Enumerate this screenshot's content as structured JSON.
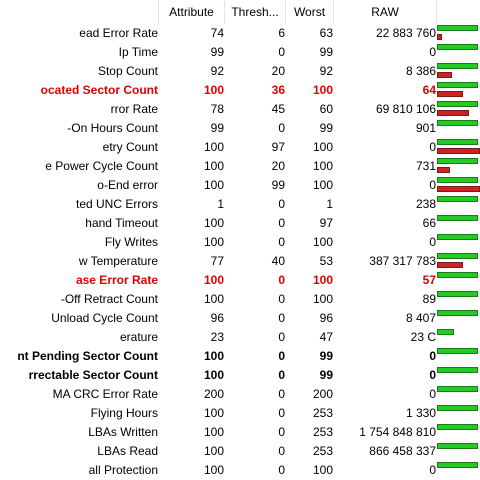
{
  "columns": {
    "attribute": "Attribute",
    "threshold": "Thresh...",
    "worst": "Worst",
    "raw": "RAW"
  },
  "colors": {
    "critical_text": "#e00000",
    "health_bar": "#22cc22",
    "raw_bar": "#cc2222"
  },
  "rows": [
    {
      "name": "ead Error Rate",
      "attribute": "74",
      "threshold": "6",
      "worst": "63",
      "raw": "22 883 760",
      "style": "normal",
      "health": 0.95,
      "raw_level": 0.12
    },
    {
      "name": "Ip Time",
      "attribute": "99",
      "threshold": "0",
      "worst": "99",
      "raw": "0",
      "style": "normal",
      "health": 0.95,
      "raw_level": 0
    },
    {
      "name": "Stop Count",
      "attribute": "92",
      "threshold": "20",
      "worst": "92",
      "raw": "8 386",
      "style": "normal",
      "health": 0.95,
      "raw_level": 0.35
    },
    {
      "name": "ocated Sector Count",
      "attribute": "100",
      "threshold": "36",
      "worst": "100",
      "raw": "64",
      "style": "red",
      "health": 0.95,
      "raw_level": 0.6
    },
    {
      "name": "rror Rate",
      "attribute": "78",
      "threshold": "45",
      "worst": "60",
      "raw": "69 810 106",
      "style": "normal",
      "health": 0.95,
      "raw_level": 0.75
    },
    {
      "name": "-On Hours Count",
      "attribute": "99",
      "threshold": "0",
      "worst": "99",
      "raw": "901",
      "style": "normal",
      "health": 0.95,
      "raw_level": 0
    },
    {
      "name": "etry Count",
      "attribute": "100",
      "threshold": "97",
      "worst": "100",
      "raw": "0",
      "style": "normal",
      "health": 0.95,
      "raw_level": 1.0
    },
    {
      "name": "e Power Cycle Count",
      "attribute": "100",
      "threshold": "20",
      "worst": "100",
      "raw": "731",
      "style": "normal",
      "health": 0.95,
      "raw_level": 0.3
    },
    {
      "name": "o-End error",
      "attribute": "100",
      "threshold": "99",
      "worst": "100",
      "raw": "0",
      "style": "normal",
      "health": 0.95,
      "raw_level": 1.0
    },
    {
      "name": "ted UNC Errors",
      "attribute": "1",
      "threshold": "0",
      "worst": "1",
      "raw": "238",
      "style": "normal",
      "health": 0.95,
      "raw_level": 0
    },
    {
      "name": "hand Timeout",
      "attribute": "100",
      "threshold": "0",
      "worst": "97",
      "raw": "66",
      "style": "normal",
      "health": 0.95,
      "raw_level": 0
    },
    {
      "name": "Fly Writes",
      "attribute": "100",
      "threshold": "0",
      "worst": "100",
      "raw": "0",
      "style": "normal",
      "health": 0.95,
      "raw_level": 0
    },
    {
      "name": "w Temperature",
      "attribute": "77",
      "threshold": "40",
      "worst": "53",
      "raw": "387 317 783",
      "style": "normal",
      "health": 0.95,
      "raw_level": 0.6
    },
    {
      "name": "ase Error Rate",
      "attribute": "100",
      "threshold": "0",
      "worst": "100",
      "raw": "57",
      "style": "red",
      "health": 0.95,
      "raw_level": 0
    },
    {
      "name": "-Off Retract Count",
      "attribute": "100",
      "threshold": "0",
      "worst": "100",
      "raw": "89",
      "style": "normal",
      "health": 0.95,
      "raw_level": 0
    },
    {
      "name": "Unload Cycle Count",
      "attribute": "96",
      "threshold": "0",
      "worst": "96",
      "raw": "8 407",
      "style": "normal",
      "health": 0.95,
      "raw_level": 0
    },
    {
      "name": "erature",
      "attribute": "23",
      "threshold": "0",
      "worst": "47",
      "raw": "23 C",
      "style": "normal",
      "health": 0.4,
      "raw_level": 0
    },
    {
      "name": "nt Pending Sector Count",
      "attribute": "100",
      "threshold": "0",
      "worst": "99",
      "raw": "0",
      "style": "bold",
      "health": 0.95,
      "raw_level": 0
    },
    {
      "name": "rrectable Sector Count",
      "attribute": "100",
      "threshold": "0",
      "worst": "99",
      "raw": "0",
      "style": "bold",
      "health": 0.95,
      "raw_level": 0
    },
    {
      "name": "MA CRC Error Rate",
      "attribute": "200",
      "threshold": "0",
      "worst": "200",
      "raw": "0",
      "style": "normal",
      "health": 0.95,
      "raw_level": 0
    },
    {
      "name": "Flying Hours",
      "attribute": "100",
      "threshold": "0",
      "worst": "253",
      "raw": "1 330",
      "style": "normal",
      "health": 0.95,
      "raw_level": 0
    },
    {
      "name": "LBAs Written",
      "attribute": "100",
      "threshold": "0",
      "worst": "253",
      "raw": "1 754 848 810",
      "style": "normal",
      "health": 0.95,
      "raw_level": 0
    },
    {
      "name": "LBAs Read",
      "attribute": "100",
      "threshold": "0",
      "worst": "253",
      "raw": "866 458 337",
      "style": "normal",
      "health": 0.95,
      "raw_level": 0
    },
    {
      "name": "all Protection",
      "attribute": "100",
      "threshold": "0",
      "worst": "100",
      "raw": "0",
      "style": "normal",
      "health": 0.95,
      "raw_level": 0
    }
  ]
}
